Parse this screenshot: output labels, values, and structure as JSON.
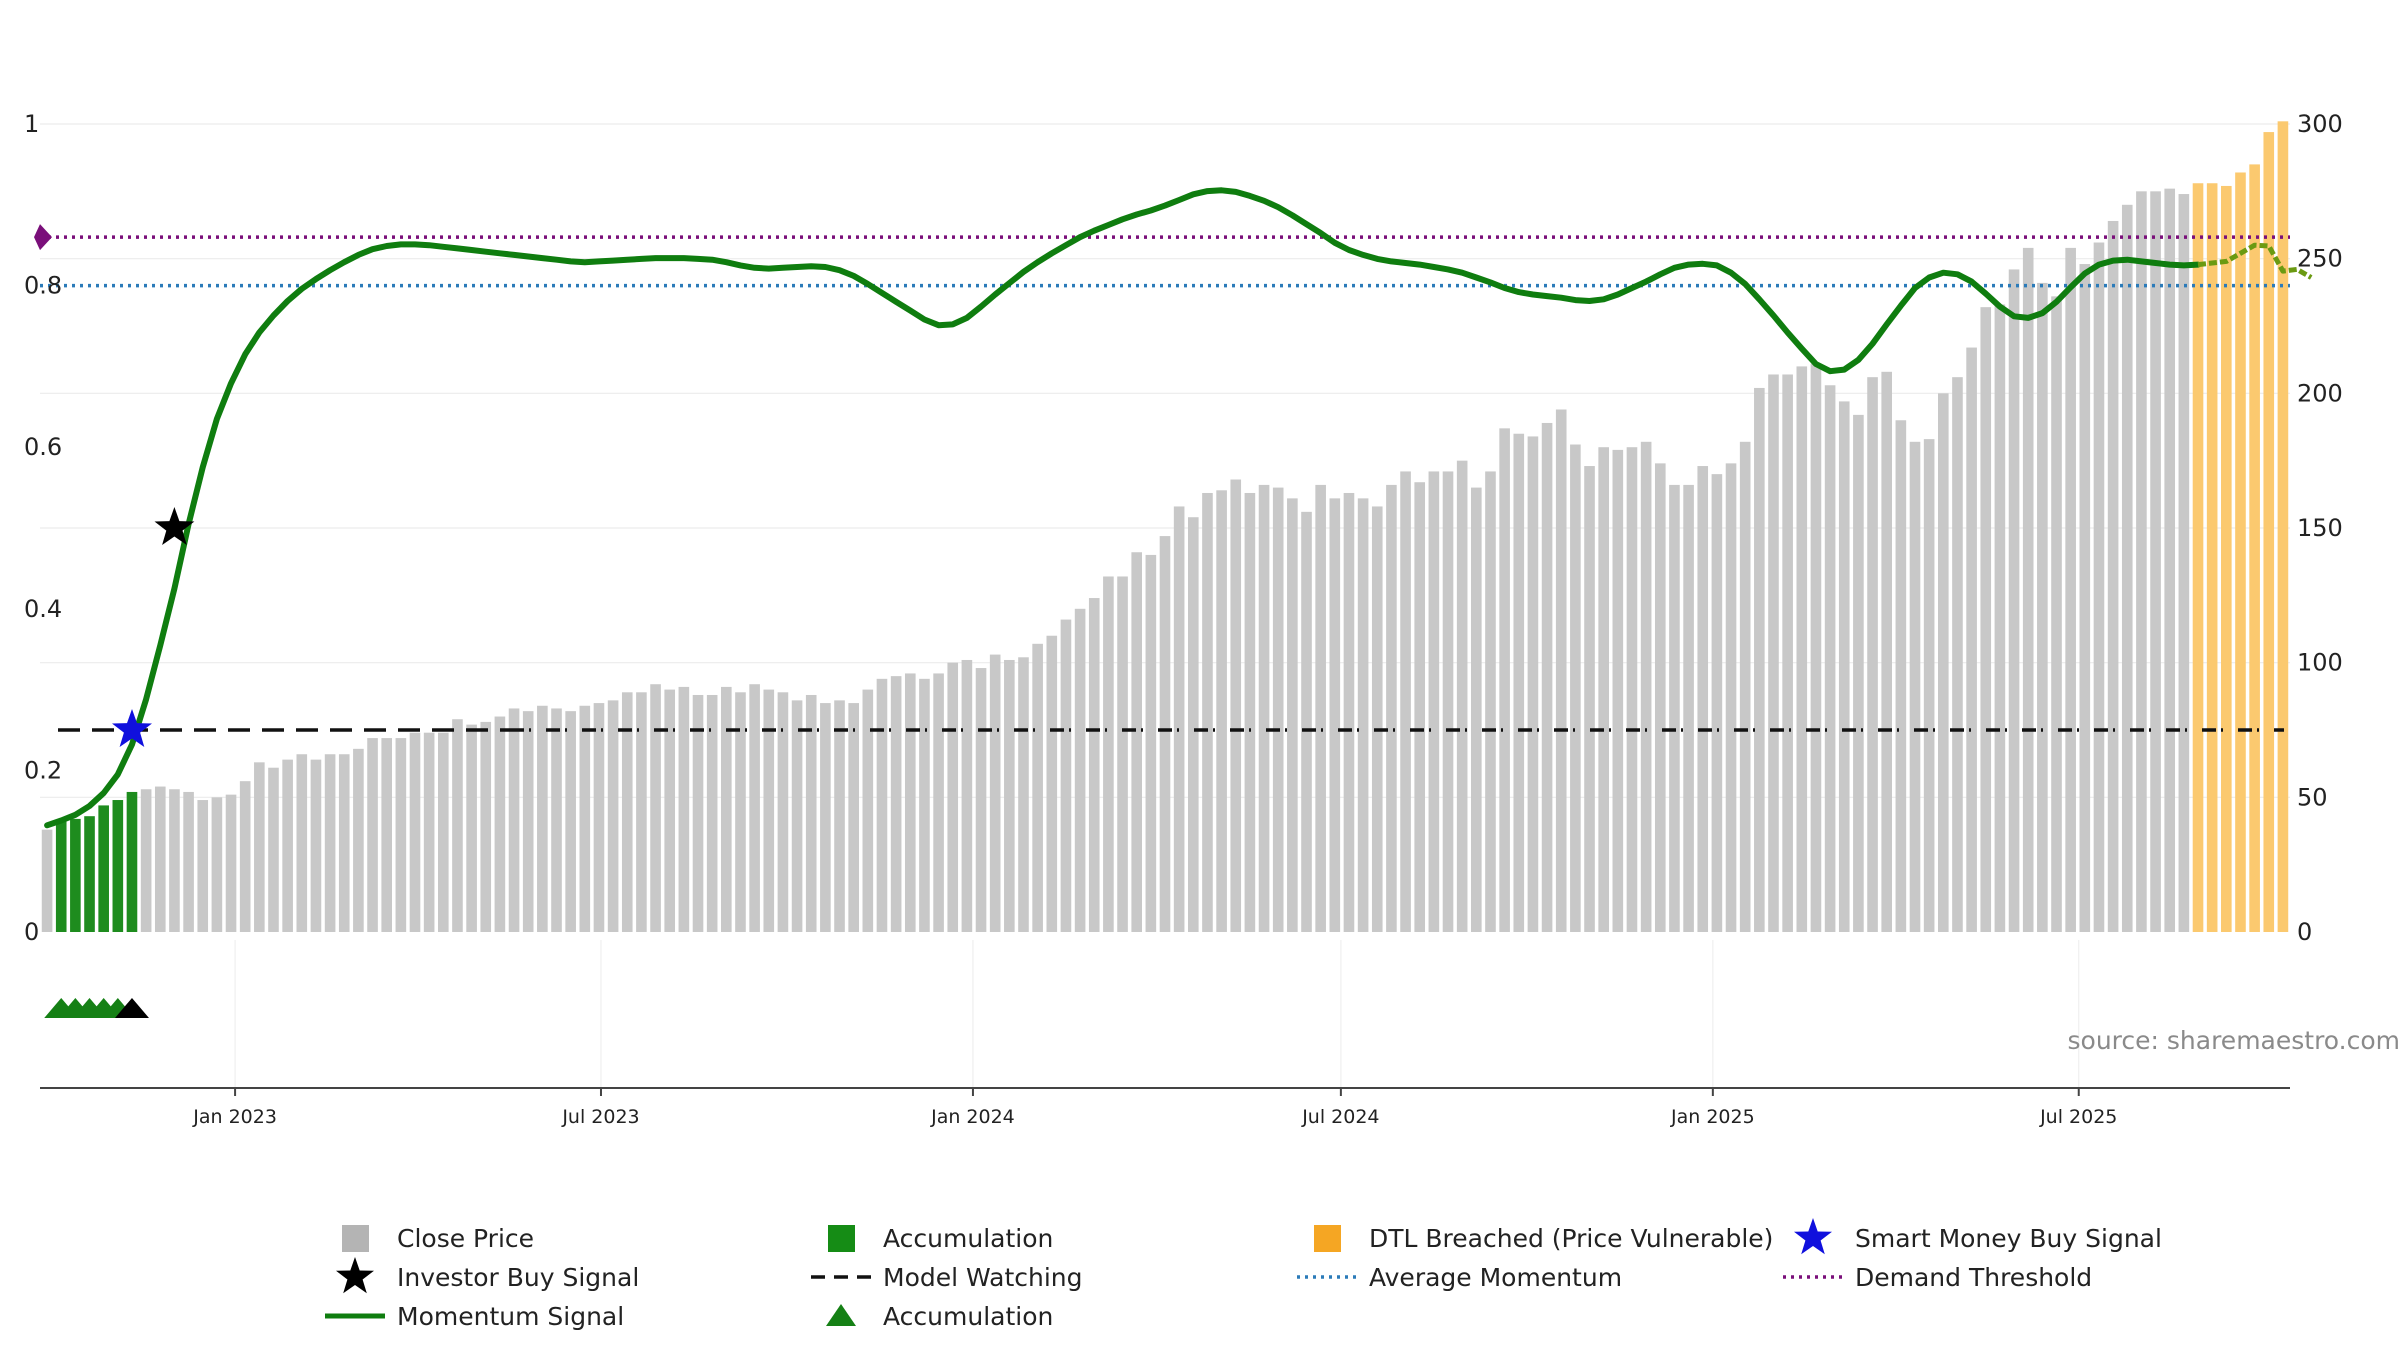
{
  "source_text": "source: sharemaestro.com",
  "chart_data": {
    "type": "bar",
    "left_axis": {
      "ticks": [
        0,
        0.2,
        0.4,
        0.6,
        0.8,
        1
      ],
      "tick_labels": [
        "0",
        "0.2",
        "0.4",
        "0.6",
        "0.8",
        "1"
      ],
      "ylim": [
        0,
        1
      ]
    },
    "right_axis": {
      "ticks": [
        0,
        50,
        100,
        150,
        200,
        250,
        300
      ],
      "tick_labels": [
        "0",
        "50",
        "100",
        "150",
        "200",
        "250",
        "300"
      ],
      "ylim": [
        0,
        300
      ]
    },
    "x_ticks": [
      "Jan 2023",
      "Jul 2023",
      "Jan 2024",
      "Jul 2024",
      "Jan 2025",
      "Jul 2025"
    ],
    "x_tick_dates": [
      "2023-01-01",
      "2023-07-01",
      "2024-01-01",
      "2024-07-01",
      "2025-01-01",
      "2025-07-01"
    ],
    "bar_start_date": "2022-09-30",
    "bar_interval": "weekly",
    "close_price": [
      38,
      41,
      42,
      43,
      47,
      49,
      52,
      53,
      54,
      53,
      52,
      49,
      50,
      51,
      56,
      63,
      61,
      64,
      66,
      64,
      66,
      66,
      68,
      72,
      72,
      72,
      74,
      74,
      74,
      79,
      77,
      78,
      80,
      83,
      82,
      84,
      83,
      82,
      84,
      85,
      86,
      89,
      89,
      92,
      90,
      91,
      88,
      88,
      91,
      89,
      92,
      90,
      89,
      86,
      88,
      85,
      86,
      85,
      90,
      94,
      95,
      96,
      94,
      96,
      100,
      101,
      98,
      103,
      101,
      102,
      107,
      110,
      116,
      120,
      124,
      132,
      132,
      141,
      140,
      147,
      158,
      154,
      163,
      164,
      168,
      163,
      166,
      165,
      161,
      156,
      166,
      161,
      163,
      161,
      158,
      166,
      171,
      167,
      171,
      171,
      175,
      165,
      171,
      187,
      185,
      184,
      189,
      194,
      181,
      173,
      180,
      179,
      180,
      182,
      174,
      166,
      166,
      173,
      170,
      174,
      182,
      202,
      207,
      207,
      210,
      211,
      203,
      197,
      192,
      206,
      208,
      190,
      182,
      183,
      200,
      206,
      217,
      232,
      233,
      246,
      254,
      241,
      236,
      254,
      248,
      256,
      264,
      270,
      275,
      275,
      276,
      274,
      278,
      278,
      277,
      282,
      285,
      297,
      301
    ],
    "accumulation_bars": [
      1,
      2,
      3,
      4,
      5,
      6
    ],
    "dtl_breached_bars": [
      152,
      153,
      154,
      155,
      156,
      157,
      158,
      159,
      160,
      161
    ],
    "momentum": [
      0.132,
      0.138,
      0.145,
      0.156,
      0.172,
      0.195,
      0.232,
      0.288,
      0.355,
      0.425,
      0.505,
      0.575,
      0.635,
      0.679,
      0.715,
      0.742,
      0.763,
      0.781,
      0.796,
      0.808,
      0.819,
      0.829,
      0.838,
      0.845,
      0.849,
      0.851,
      0.851,
      0.85,
      0.848,
      0.846,
      0.844,
      0.842,
      0.84,
      0.838,
      0.836,
      0.834,
      0.832,
      0.83,
      0.829,
      0.83,
      0.831,
      0.832,
      0.833,
      0.834,
      0.834,
      0.834,
      0.833,
      0.832,
      0.829,
      0.825,
      0.822,
      0.821,
      0.822,
      0.823,
      0.824,
      0.823,
      0.819,
      0.812,
      0.802,
      0.791,
      0.78,
      0.769,
      0.758,
      0.751,
      0.752,
      0.76,
      0.774,
      0.789,
      0.803,
      0.817,
      0.829,
      0.84,
      0.85,
      0.86,
      0.868,
      0.875,
      0.882,
      0.888,
      0.893,
      0.899,
      0.906,
      0.913,
      0.917,
      0.918,
      0.916,
      0.911,
      0.905,
      0.897,
      0.887,
      0.876,
      0.865,
      0.853,
      0.844,
      0.838,
      0.833,
      0.83,
      0.828,
      0.826,
      0.823,
      0.82,
      0.816,
      0.81,
      0.804,
      0.797,
      0.792,
      0.789,
      0.787,
      0.785,
      0.782,
      0.781,
      0.783,
      0.789,
      0.797,
      0.805,
      0.814,
      0.822,
      0.826,
      0.827,
      0.825,
      0.816,
      0.802,
      0.783,
      0.763,
      0.742,
      0.722,
      0.703,
      0.694,
      0.696,
      0.708,
      0.728,
      0.752,
      0.775,
      0.797,
      0.81,
      0.816,
      0.814,
      0.805,
      0.79,
      0.774,
      0.762,
      0.76,
      0.766,
      0.78,
      0.798,
      0.815,
      0.826,
      0.831,
      0.832,
      0.83,
      0.828,
      0.826,
      0.825,
      0.826,
      0.828,
      0.83,
      0.84,
      0.85,
      0.849,
      0.818,
      0.82,
      0.81
    ],
    "momentum_dtl_start_index": 152,
    "average_momentum": 0.8,
    "demand_threshold": 0.86,
    "model_watching": 0.25,
    "investor_buy_signal": {
      "bar_index": 9,
      "value": 0.5
    },
    "smart_money_buy_signal": {
      "bar_index": 6,
      "value": 0.25
    },
    "accumulation_markers": [
      {
        "bar_index": 1,
        "color": "#158015"
      },
      {
        "bar_index": 2,
        "color": "#158015"
      },
      {
        "bar_index": 3,
        "color": "#158015"
      },
      {
        "bar_index": 4,
        "color": "#158015"
      },
      {
        "bar_index": 5,
        "color": "#158015"
      },
      {
        "bar_index": 6,
        "color": "#000000"
      }
    ],
    "colors": {
      "close_price": "#c8c8c8",
      "accumulation": "#1e8c1e",
      "dtl_breached": "#fbc96f",
      "momentum": "#0f7d0f",
      "momentum_dtl": "#6b9a12",
      "average_momentum": "#2b7bb9",
      "demand_threshold": "#7a0f7a",
      "model_watching": "#111111",
      "smart_money": "#1010dd",
      "investor_buy": "#000000"
    },
    "legend": [
      {
        "label": "Close Price",
        "marker": "square",
        "color": "#b4b4b4"
      },
      {
        "label": "Accumulation",
        "marker": "square",
        "color": "#158c15"
      },
      {
        "label": "DTL Breached (Price Vulnerable)",
        "marker": "square",
        "color": "#f5a623"
      },
      {
        "label": "Smart Money Buy Signal",
        "marker": "star",
        "color": "#1010dd"
      },
      {
        "label": "Investor Buy Signal",
        "marker": "star",
        "color": "#000000"
      },
      {
        "label": "Model Watching",
        "marker": "dash",
        "color": "#111111"
      },
      {
        "label": "Average Momentum",
        "marker": "dotted",
        "color": "#2b7bb9"
      },
      {
        "label": "Demand Threshold",
        "marker": "dotted",
        "color": "#7a0f7a"
      },
      {
        "label": "Momentum Signal",
        "marker": "line",
        "color": "#0f7d0f"
      },
      {
        "label": "Accumulation",
        "marker": "triangle",
        "color": "#158015"
      }
    ]
  }
}
